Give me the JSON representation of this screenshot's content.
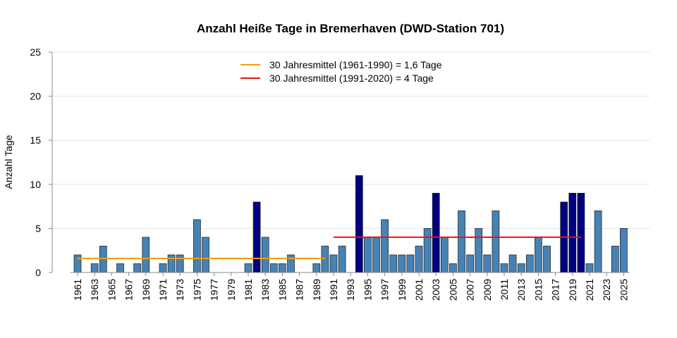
{
  "chart_data": {
    "type": "bar",
    "title": "Anzahl Heiße Tage in Bremerhaven (DWD-Station 701)",
    "xlabel": "",
    "ylabel": "Anzahl Tage",
    "ylim": [
      0,
      25
    ],
    "yticks": [
      0,
      5,
      10,
      15,
      20,
      25
    ],
    "grid": true,
    "legend_position": "top-center",
    "categories": [
      1961,
      1962,
      1963,
      1964,
      1965,
      1966,
      1967,
      1968,
      1969,
      1970,
      1971,
      1972,
      1973,
      1974,
      1975,
      1976,
      1977,
      1978,
      1979,
      1980,
      1981,
      1982,
      1983,
      1984,
      1985,
      1986,
      1987,
      1988,
      1989,
      1990,
      1991,
      1992,
      1993,
      1994,
      1995,
      1996,
      1997,
      1998,
      1999,
      2000,
      2001,
      2002,
      2003,
      2004,
      2005,
      2006,
      2007,
      2008,
      2009,
      2010,
      2011,
      2012,
      2013,
      2014,
      2015,
      2016,
      2017,
      2018,
      2019,
      2020,
      2021,
      2022,
      2023,
      2024,
      2025
    ],
    "xtick_labels": [
      "1961",
      "1963",
      "1965",
      "1967",
      "1969",
      "1971",
      "1973",
      "1975",
      "1977",
      "1979",
      "1981",
      "1983",
      "1985",
      "1987",
      "1989",
      "1991",
      "1993",
      "1995",
      "1997",
      "1999",
      "2001",
      "2003",
      "2005",
      "2007",
      "2009",
      "2011",
      "2013",
      "2015",
      "2017",
      "2019",
      "2021",
      "2023",
      "2025"
    ],
    "values": [
      2,
      0,
      1,
      3,
      0,
      1,
      0,
      1,
      4,
      0,
      1,
      2,
      2,
      0,
      6,
      4,
      0,
      0,
      0,
      0,
      1,
      8,
      4,
      1,
      1,
      2,
      0,
      0,
      1,
      3,
      2,
      3,
      0,
      11,
      4,
      4,
      6,
      2,
      2,
      2,
      3,
      5,
      9,
      4,
      1,
      7,
      2,
      5,
      2,
      7,
      1,
      2,
      1,
      2,
      4,
      3,
      0,
      8,
      9,
      9,
      1,
      7,
      0,
      3,
      5
    ],
    "highlighted_years": [
      1982,
      1994,
      2003,
      2018,
      2019,
      2020
    ],
    "colors": {
      "bar": "#4682b4",
      "bar_highlight": "#000080",
      "bar_edge": "#1a1a1a",
      "mean_1961_1990": "#f0a000",
      "mean_1991_2020": "#ee1111",
      "grid": "#e6e6e6"
    },
    "reference_lines": [
      {
        "label": "30 Jahresmittel (1961-1990) = 1,6 Tage",
        "value": 1.6,
        "from": 1961,
        "to": 1990,
        "color_key": "mean_1961_1990"
      },
      {
        "label": "30 Jahresmittel (1991-2020) = 4 Tage",
        "value": 4,
        "from": 1991,
        "to": 2020,
        "color_key": "mean_1991_2020"
      }
    ]
  }
}
